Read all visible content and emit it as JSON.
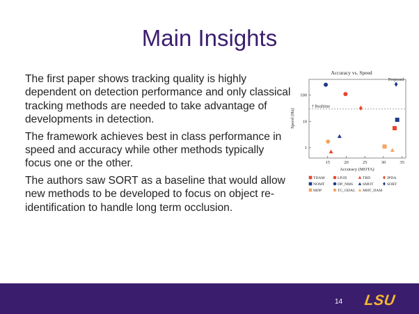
{
  "slide": {
    "title": "Main Insights",
    "paragraphs": [
      "The first paper shows tracking quality is highly dependent on detection performance and only classical tracking methods are needed to take advantage of developments in detection.",
      "The framework achieves best in class performance in speed and accuracy while other methods typically focus one or the other.",
      "The authors saw SORT as a baseline that would allow new methods to be developed to focus on object re-identification to handle long term occlusion."
    ],
    "page_number": "14",
    "logo_text": "LSU"
  },
  "colors": {
    "accent_purple": "#3b1d6e",
    "logo_gold": "#f5b82e"
  },
  "chart_data": {
    "type": "scatter",
    "title": "Accuracy vs. Speed",
    "xlabel": "Accuracy (MOTA)",
    "ylabel": "Speed (Hz)",
    "x_ticks": [
      "15",
      "20",
      "25",
      "30",
      "35"
    ],
    "y_ticks": [
      "1",
      "10",
      "100"
    ],
    "x_tick_values": [
      15,
      20,
      25,
      30,
      35
    ],
    "y_tick_values": [
      1,
      10,
      100
    ],
    "xlim": [
      10,
      36
    ],
    "ylim": [
      0.4,
      400
    ],
    "y_scale": "log",
    "realtime_label": "Realtime",
    "realtime_value": 30,
    "annotation": "Proposed",
    "points": [
      {
        "name": "TDAM",
        "x": 33.0,
        "y": 5.5,
        "marker": "square",
        "color": "#e8442c"
      },
      {
        "name": "LP2D",
        "x": 19.8,
        "y": 110,
        "marker": "circle",
        "color": "#e8442c"
      },
      {
        "name": "TBD",
        "x": 15.9,
        "y": 0.7,
        "marker": "triangle",
        "color": "#e8442c"
      },
      {
        "name": "JPDA",
        "x": 23.9,
        "y": 32,
        "marker": "diamond",
        "color": "#e8442c"
      },
      {
        "name": "NOMT",
        "x": 33.7,
        "y": 11.5,
        "marker": "square",
        "color": "#1f3a8a"
      },
      {
        "name": "DP_NMS",
        "x": 14.5,
        "y": 250,
        "marker": "circle",
        "color": "#1f3a8a"
      },
      {
        "name": "SMOT",
        "x": 18.2,
        "y": 2.7,
        "marker": "triangle",
        "color": "#1f3a8a"
      },
      {
        "name": "SORT",
        "x": 33.4,
        "y": 260,
        "marker": "diamond",
        "color": "#1f3a8a"
      },
      {
        "name": "MDP",
        "x": 30.3,
        "y": 1.1,
        "marker": "square",
        "color": "#f4a460"
      },
      {
        "name": "TC_ODAL",
        "x": 15.1,
        "y": 1.7,
        "marker": "circle",
        "color": "#f4a460"
      },
      {
        "name": "MHT_DAM",
        "x": 32.4,
        "y": 0.8,
        "marker": "triangle",
        "color": "#f4a460"
      }
    ],
    "legend": [
      {
        "label": "TDAM",
        "marker": "square",
        "color": "#e8442c"
      },
      {
        "label": "LP2D",
        "marker": "circle",
        "color": "#e8442c"
      },
      {
        "label": "TBD",
        "marker": "triangle",
        "color": "#e8442c"
      },
      {
        "label": "JPDA",
        "marker": "diamond",
        "color": "#e8442c"
      },
      {
        "label": "NOMT",
        "marker": "square",
        "color": "#1f3a8a"
      },
      {
        "label": "DP_NMS",
        "marker": "circle",
        "color": "#1f3a8a"
      },
      {
        "label": "SMOT",
        "marker": "triangle",
        "color": "#1f3a8a"
      },
      {
        "label": "SORT",
        "marker": "diamond",
        "color": "#1f3a8a"
      },
      {
        "label": "MDP",
        "marker": "square",
        "color": "#f4a460"
      },
      {
        "label": "TC_ODAL",
        "marker": "circle",
        "color": "#f4a460"
      },
      {
        "label": "MHT_DAM",
        "marker": "triangle",
        "color": "#f4a460"
      }
    ],
    "legend_position": "bottom",
    "grid": false
  }
}
